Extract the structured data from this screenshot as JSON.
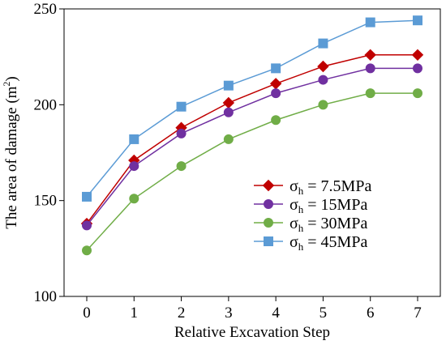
{
  "chart_data": {
    "type": "line",
    "xlabel": "Relative Excavation Step",
    "ylabel_main": "The area of  damage (m",
    "ylabel_sup": "2",
    "ylabel_close": ")",
    "xlim": [
      0,
      7
    ],
    "ylim": [
      100,
      250
    ],
    "x_ticks": [
      0,
      1,
      2,
      3,
      4,
      5,
      6,
      7
    ],
    "y_ticks": [
      100,
      150,
      200,
      250
    ],
    "grid": false,
    "legend_position": "center-right",
    "x": [
      0,
      1,
      2,
      3,
      4,
      5,
      6,
      7
    ],
    "series": [
      {
        "name": "7.5MPa",
        "values": [
          138,
          171,
          188,
          201,
          211,
          220,
          226,
          226
        ],
        "color": "#c00000",
        "marker": "diamond"
      },
      {
        "name": "15MPa",
        "values": [
          137,
          168,
          185,
          196,
          206,
          213,
          219,
          219
        ],
        "color": "#7030a0",
        "marker": "circle"
      },
      {
        "name": "30MPa",
        "values": [
          124,
          151,
          168,
          182,
          192,
          200,
          206,
          206
        ],
        "color": "#70ad47",
        "marker": "circle"
      },
      {
        "name": "45MPa",
        "values": [
          152,
          182,
          199,
          210,
          219,
          232,
          243,
          244
        ],
        "color": "#5b9bd5",
        "marker": "square"
      }
    ],
    "legend_prefix_main": "σ",
    "legend_prefix_sub": "h",
    "legend_eq": " = "
  }
}
